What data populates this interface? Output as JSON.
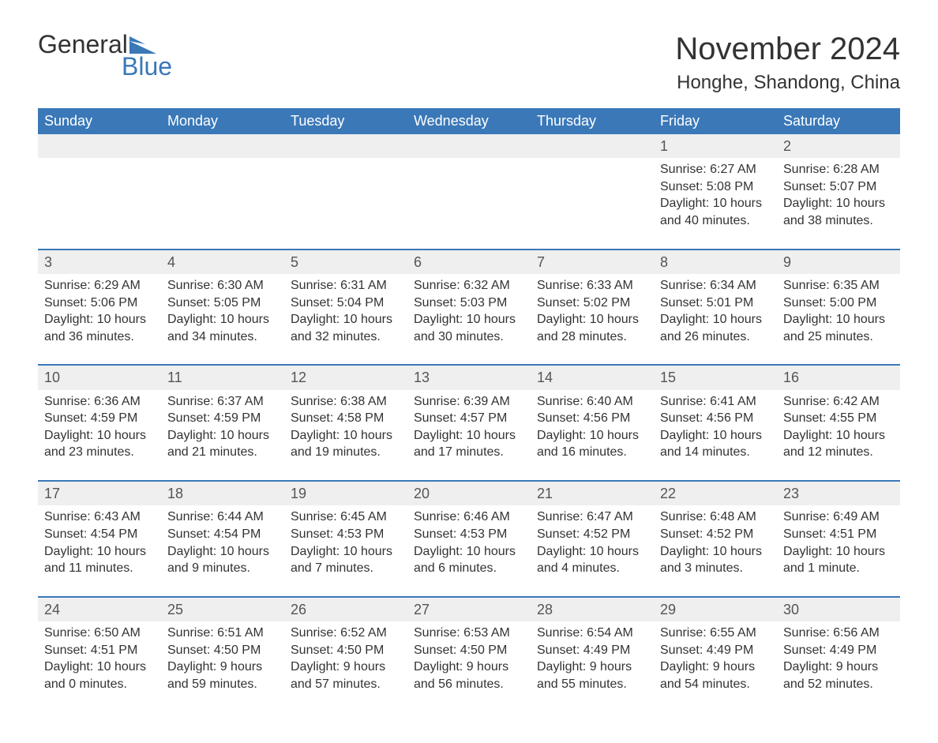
{
  "brand": {
    "word1": "General",
    "word2": "Blue",
    "accent_color": "#3a78b8"
  },
  "title": "November 2024",
  "location": "Honghe, Shandong, China",
  "colors": {
    "header_bg": "#3a78b8",
    "header_text": "#ffffff",
    "row_stripe": "#efefef",
    "row_border": "#3a78b8",
    "body_text": "#333333",
    "background": "#ffffff"
  },
  "weekdays": [
    "Sunday",
    "Monday",
    "Tuesday",
    "Wednesday",
    "Thursday",
    "Friday",
    "Saturday"
  ],
  "weeks": [
    [
      null,
      null,
      null,
      null,
      null,
      {
        "day": "1",
        "sunrise": "Sunrise: 6:27 AM",
        "sunset": "Sunset: 5:08 PM",
        "daylight": "Daylight: 10 hours and 40 minutes."
      },
      {
        "day": "2",
        "sunrise": "Sunrise: 6:28 AM",
        "sunset": "Sunset: 5:07 PM",
        "daylight": "Daylight: 10 hours and 38 minutes."
      }
    ],
    [
      {
        "day": "3",
        "sunrise": "Sunrise: 6:29 AM",
        "sunset": "Sunset: 5:06 PM",
        "daylight": "Daylight: 10 hours and 36 minutes."
      },
      {
        "day": "4",
        "sunrise": "Sunrise: 6:30 AM",
        "sunset": "Sunset: 5:05 PM",
        "daylight": "Daylight: 10 hours and 34 minutes."
      },
      {
        "day": "5",
        "sunrise": "Sunrise: 6:31 AM",
        "sunset": "Sunset: 5:04 PM",
        "daylight": "Daylight: 10 hours and 32 minutes."
      },
      {
        "day": "6",
        "sunrise": "Sunrise: 6:32 AM",
        "sunset": "Sunset: 5:03 PM",
        "daylight": "Daylight: 10 hours and 30 minutes."
      },
      {
        "day": "7",
        "sunrise": "Sunrise: 6:33 AM",
        "sunset": "Sunset: 5:02 PM",
        "daylight": "Daylight: 10 hours and 28 minutes."
      },
      {
        "day": "8",
        "sunrise": "Sunrise: 6:34 AM",
        "sunset": "Sunset: 5:01 PM",
        "daylight": "Daylight: 10 hours and 26 minutes."
      },
      {
        "day": "9",
        "sunrise": "Sunrise: 6:35 AM",
        "sunset": "Sunset: 5:00 PM",
        "daylight": "Daylight: 10 hours and 25 minutes."
      }
    ],
    [
      {
        "day": "10",
        "sunrise": "Sunrise: 6:36 AM",
        "sunset": "Sunset: 4:59 PM",
        "daylight": "Daylight: 10 hours and 23 minutes."
      },
      {
        "day": "11",
        "sunrise": "Sunrise: 6:37 AM",
        "sunset": "Sunset: 4:59 PM",
        "daylight": "Daylight: 10 hours and 21 minutes."
      },
      {
        "day": "12",
        "sunrise": "Sunrise: 6:38 AM",
        "sunset": "Sunset: 4:58 PM",
        "daylight": "Daylight: 10 hours and 19 minutes."
      },
      {
        "day": "13",
        "sunrise": "Sunrise: 6:39 AM",
        "sunset": "Sunset: 4:57 PM",
        "daylight": "Daylight: 10 hours and 17 minutes."
      },
      {
        "day": "14",
        "sunrise": "Sunrise: 6:40 AM",
        "sunset": "Sunset: 4:56 PM",
        "daylight": "Daylight: 10 hours and 16 minutes."
      },
      {
        "day": "15",
        "sunrise": "Sunrise: 6:41 AM",
        "sunset": "Sunset: 4:56 PM",
        "daylight": "Daylight: 10 hours and 14 minutes."
      },
      {
        "day": "16",
        "sunrise": "Sunrise: 6:42 AM",
        "sunset": "Sunset: 4:55 PM",
        "daylight": "Daylight: 10 hours and 12 minutes."
      }
    ],
    [
      {
        "day": "17",
        "sunrise": "Sunrise: 6:43 AM",
        "sunset": "Sunset: 4:54 PM",
        "daylight": "Daylight: 10 hours and 11 minutes."
      },
      {
        "day": "18",
        "sunrise": "Sunrise: 6:44 AM",
        "sunset": "Sunset: 4:54 PM",
        "daylight": "Daylight: 10 hours and 9 minutes."
      },
      {
        "day": "19",
        "sunrise": "Sunrise: 6:45 AM",
        "sunset": "Sunset: 4:53 PM",
        "daylight": "Daylight: 10 hours and 7 minutes."
      },
      {
        "day": "20",
        "sunrise": "Sunrise: 6:46 AM",
        "sunset": "Sunset: 4:53 PM",
        "daylight": "Daylight: 10 hours and 6 minutes."
      },
      {
        "day": "21",
        "sunrise": "Sunrise: 6:47 AM",
        "sunset": "Sunset: 4:52 PM",
        "daylight": "Daylight: 10 hours and 4 minutes."
      },
      {
        "day": "22",
        "sunrise": "Sunrise: 6:48 AM",
        "sunset": "Sunset: 4:52 PM",
        "daylight": "Daylight: 10 hours and 3 minutes."
      },
      {
        "day": "23",
        "sunrise": "Sunrise: 6:49 AM",
        "sunset": "Sunset: 4:51 PM",
        "daylight": "Daylight: 10 hours and 1 minute."
      }
    ],
    [
      {
        "day": "24",
        "sunrise": "Sunrise: 6:50 AM",
        "sunset": "Sunset: 4:51 PM",
        "daylight": "Daylight: 10 hours and 0 minutes."
      },
      {
        "day": "25",
        "sunrise": "Sunrise: 6:51 AM",
        "sunset": "Sunset: 4:50 PM",
        "daylight": "Daylight: 9 hours and 59 minutes."
      },
      {
        "day": "26",
        "sunrise": "Sunrise: 6:52 AM",
        "sunset": "Sunset: 4:50 PM",
        "daylight": "Daylight: 9 hours and 57 minutes."
      },
      {
        "day": "27",
        "sunrise": "Sunrise: 6:53 AM",
        "sunset": "Sunset: 4:50 PM",
        "daylight": "Daylight: 9 hours and 56 minutes."
      },
      {
        "day": "28",
        "sunrise": "Sunrise: 6:54 AM",
        "sunset": "Sunset: 4:49 PM",
        "daylight": "Daylight: 9 hours and 55 minutes."
      },
      {
        "day": "29",
        "sunrise": "Sunrise: 6:55 AM",
        "sunset": "Sunset: 4:49 PM",
        "daylight": "Daylight: 9 hours and 54 minutes."
      },
      {
        "day": "30",
        "sunrise": "Sunrise: 6:56 AM",
        "sunset": "Sunset: 4:49 PM",
        "daylight": "Daylight: 9 hours and 52 minutes."
      }
    ]
  ]
}
